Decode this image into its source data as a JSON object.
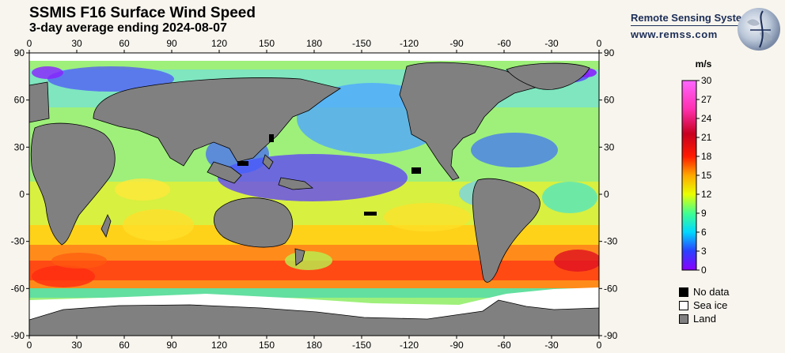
{
  "title": "SSMIS F16 Surface Wind Speed",
  "subtitle": "3-day average ending 2024-08-07",
  "brand": {
    "name": "Remote Sensing Systems",
    "url": "www.remss.com"
  },
  "map": {
    "top_ticks": [
      "0",
      "30",
      "60",
      "90",
      "120",
      "150",
      "180",
      "-150",
      "-120",
      "-90",
      "-60",
      "-30",
      "0"
    ],
    "bottom_ticks": [
      "0",
      "30",
      "60",
      "90",
      "120",
      "150",
      "180",
      "-150",
      "-120",
      "-90",
      "-60",
      "-30",
      "0"
    ],
    "lat_ticks": [
      "90",
      "60",
      "30",
      "0",
      "-30",
      "-60",
      "-90"
    ],
    "colors": {
      "land": "#808080",
      "sea_ice": "#ffffff",
      "no_data": "#000000"
    }
  },
  "colorbar": {
    "unit": "m/s",
    "ticks": [
      "30",
      "27",
      "24",
      "21",
      "18",
      "15",
      "12",
      "9",
      "6",
      "3",
      "0"
    ],
    "stops": [
      "#8a00ff",
      "#2a40ff",
      "#00d8ff",
      "#40ff90",
      "#e8ff00",
      "#ffa800",
      "#ff1a00",
      "#c80020",
      "#ff30b0",
      "#ff66ff"
    ]
  },
  "key": {
    "no_data": "No data",
    "sea_ice": "Sea ice",
    "land": "Land"
  }
}
